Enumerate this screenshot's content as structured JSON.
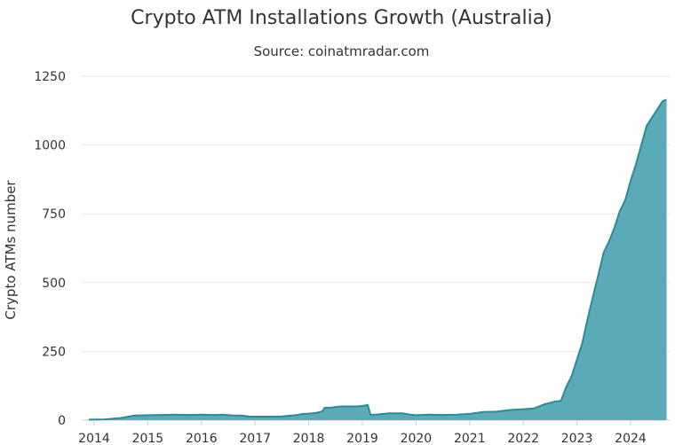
{
  "chart_data": {
    "type": "area",
    "title": "Crypto ATM Installations Growth (Australia)",
    "subtitle": "Source: coinatmradar.com",
    "xlabel": "",
    "ylabel": "Crypto ATMs number",
    "ylim": [
      0,
      1250
    ],
    "yticks": [
      0,
      250,
      500,
      750,
      1000,
      1250
    ],
    "xticks": [
      "2014",
      "2015",
      "2016",
      "2017",
      "2018",
      "2019",
      "2020",
      "2021",
      "2022",
      "2023",
      "2024"
    ],
    "grid": "horizontal",
    "legend": "none",
    "color": "#5aabb7",
    "line_color": "#2e8a96",
    "series": [
      {
        "x": [
          2013.9,
          2014.2,
          2014.5,
          2014.75,
          2015.0,
          2015.25,
          2015.5,
          2015.75,
          2016.0,
          2016.25,
          2016.4,
          2016.6,
          2016.75,
          2016.9,
          2017.0,
          2017.25,
          2017.5,
          2017.75,
          2017.9,
          2018.0,
          2018.15,
          2018.25,
          2018.3,
          2018.4,
          2018.5,
          2018.6,
          2018.75,
          2018.9,
          2019.0,
          2019.1,
          2019.15,
          2019.25,
          2019.5,
          2019.75,
          2019.9,
          2020.0,
          2020.25,
          2020.5,
          2020.75,
          2021.0,
          2021.25,
          2021.5,
          2021.75,
          2022.0,
          2022.2,
          2022.4,
          2022.6,
          2022.7,
          2022.8,
          2022.9,
          2023.0,
          2023.1,
          2023.2,
          2023.3,
          2023.4,
          2023.5,
          2023.6,
          2023.7,
          2023.8,
          2023.9,
          2024.0,
          2024.1,
          2024.2,
          2024.3,
          2024.4,
          2024.5,
          2024.6,
          2024.67
        ],
        "y": [
          2,
          3,
          8,
          17,
          18,
          19,
          20,
          19,
          20,
          19,
          20,
          17,
          17,
          13,
          13,
          13,
          14,
          18,
          23,
          24,
          27,
          32,
          45,
          45,
          48,
          50,
          50,
          50,
          52,
          55,
          20,
          20,
          25,
          25,
          20,
          18,
          20,
          19,
          20,
          23,
          30,
          31,
          37,
          40,
          43,
          58,
          68,
          70,
          120,
          160,
          220,
          280,
          370,
          450,
          530,
          610,
          650,
          700,
          760,
          800,
          870,
          930,
          1000,
          1070,
          1100,
          1130,
          1160,
          1165
        ]
      }
    ]
  }
}
